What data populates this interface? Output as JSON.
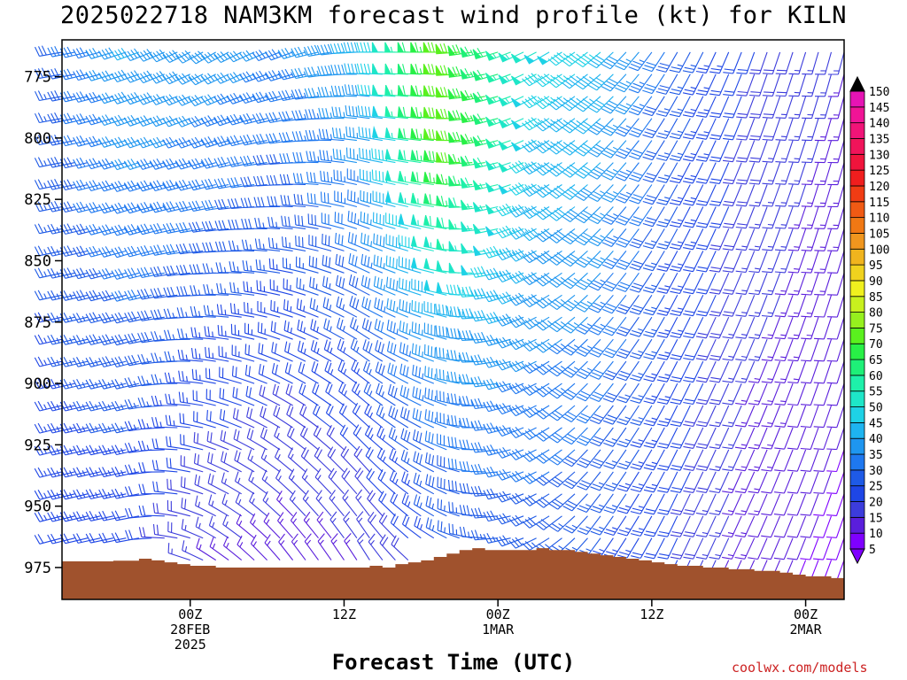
{
  "title": "2025022718 NAM3KM forecast wind profile (kt) for KILN",
  "credit": "coolwx.com/models",
  "chart_data": {
    "type": "wind-barb-profile",
    "xlabel": "Forecast Time (UTC)",
    "y_axis": {
      "range_hPa": [
        988,
        760
      ],
      "ticks": [
        775,
        800,
        825,
        850,
        875,
        900,
        925,
        950,
        975
      ]
    },
    "x_axis": {
      "range_hours_from_first": [
        -4,
        57
      ],
      "ticks": [
        {
          "hour": 6,
          "lines": [
            "00Z",
            "28FEB",
            "2025"
          ]
        },
        {
          "hour": 18,
          "lines": [
            "12Z"
          ]
        },
        {
          "hour": 30,
          "lines": [
            "00Z",
            "1MAR"
          ]
        },
        {
          "hour": 42,
          "lines": [
            "12Z"
          ]
        },
        {
          "hour": 54,
          "lines": [
            "00Z",
            "2MAR"
          ]
        }
      ]
    },
    "colorbar": {
      "unit": "kt",
      "levels": [
        5,
        10,
        15,
        20,
        25,
        30,
        35,
        40,
        45,
        50,
        55,
        60,
        65,
        70,
        75,
        80,
        85,
        90,
        95,
        100,
        105,
        110,
        115,
        120,
        125,
        130,
        135,
        140,
        145,
        150
      ],
      "colors": [
        "#7f00ff",
        "#5a1edc",
        "#3c3cdc",
        "#1e46e6",
        "#1e5ae6",
        "#1e78f0",
        "#1e96f0",
        "#1eb4f0",
        "#1ed2e6",
        "#1ee6c8",
        "#1ef0aa",
        "#1ef078",
        "#28f046",
        "#5af01e",
        "#96f01e",
        "#c8f01e",
        "#f0f01e",
        "#f0d21e",
        "#f0b41e",
        "#f0961e",
        "#f07814",
        "#f05a14",
        "#f03c14",
        "#f01e1e",
        "#f0143c",
        "#f0145a",
        "#f01478",
        "#f01496",
        "#e614b4",
        "#dc14dc"
      ]
    },
    "surface_pressure_hPa": [
      {
        "t": -4,
        "p": 972.5
      },
      {
        "t": 0,
        "p": 972.2
      },
      {
        "t": 2,
        "p": 971.4
      },
      {
        "t": 3,
        "p": 972.1
      },
      {
        "t": 4,
        "p": 972.9
      },
      {
        "t": 5,
        "p": 973.6
      },
      {
        "t": 6,
        "p": 974.3
      },
      {
        "t": 8,
        "p": 975.0
      },
      {
        "t": 12,
        "p": 975.0
      },
      {
        "t": 16,
        "p": 975.0
      },
      {
        "t": 18,
        "p": 975.0
      },
      {
        "t": 20,
        "p": 974.3
      },
      {
        "t": 21,
        "p": 975.0
      },
      {
        "t": 22,
        "p": 973.6
      },
      {
        "t": 23,
        "p": 972.9
      },
      {
        "t": 24,
        "p": 972.1
      },
      {
        "t": 25,
        "p": 970.7
      },
      {
        "t": 26,
        "p": 969.3
      },
      {
        "t": 27,
        "p": 967.9
      },
      {
        "t": 28,
        "p": 967.1
      },
      {
        "t": 29,
        "p": 967.9
      },
      {
        "t": 30,
        "p": 967.9
      },
      {
        "t": 31,
        "p": 967.9
      },
      {
        "t": 32,
        "p": 967.9
      },
      {
        "t": 33,
        "p": 967.1
      },
      {
        "t": 34,
        "p": 967.9
      },
      {
        "t": 36,
        "p": 968.6
      },
      {
        "t": 37,
        "p": 969.3
      },
      {
        "t": 38,
        "p": 970.0
      },
      {
        "t": 39,
        "p": 970.7
      },
      {
        "t": 40,
        "p": 971.4
      },
      {
        "t": 41,
        "p": 972.1
      },
      {
        "t": 42,
        "p": 972.9
      },
      {
        "t": 43,
        "p": 973.6
      },
      {
        "t": 44,
        "p": 974.3
      },
      {
        "t": 46,
        "p": 975.0
      },
      {
        "t": 48,
        "p": 975.7
      },
      {
        "t": 50,
        "p": 976.4
      },
      {
        "t": 52,
        "p": 977.1
      },
      {
        "t": 53,
        "p": 977.9
      },
      {
        "t": 54,
        "p": 978.6
      },
      {
        "t": 56,
        "p": 979.3
      },
      {
        "t": 57,
        "p": 979.3
      }
    ],
    "wind_profile_note": "barbs every hour at 25 levels from 765 to 980 hPa; speeds/directions estimated from figure",
    "key_frames": [
      {
        "t": -4,
        "low_dir": 255,
        "low_spd": 22,
        "up_dir": 260,
        "up_spd": 28
      },
      {
        "t": 2,
        "low_dir": 260,
        "low_spd": 20,
        "up_dir": 250,
        "up_spd": 40
      },
      {
        "t": 8,
        "low_dir": 305,
        "low_spd": 14,
        "up_dir": 240,
        "up_spd": 38
      },
      {
        "t": 14,
        "low_dir": 325,
        "low_spd": 12,
        "up_dir": 250,
        "up_spd": 34
      },
      {
        "t": 20,
        "low_dir": 330,
        "low_spd": 14,
        "up_dir": 270,
        "up_spd": 42
      },
      {
        "t": 26,
        "low_dir": 300,
        "low_spd": 22,
        "up_dir": 270,
        "up_spd": 60
      },
      {
        "t": 32,
        "low_dir": 250,
        "low_spd": 26,
        "up_dir": 245,
        "up_spd": 50
      },
      {
        "t": 38,
        "low_dir": 215,
        "low_spd": 24,
        "up_dir": 230,
        "up_spd": 45
      },
      {
        "t": 44,
        "low_dir": 205,
        "low_spd": 20,
        "up_dir": 210,
        "up_spd": 28
      },
      {
        "t": 50,
        "low_dir": 205,
        "low_spd": 12,
        "up_dir": 200,
        "up_spd": 20
      },
      {
        "t": 57,
        "low_dir": 200,
        "low_spd": 8,
        "up_dir": 195,
        "up_spd": 15
      }
    ]
  }
}
